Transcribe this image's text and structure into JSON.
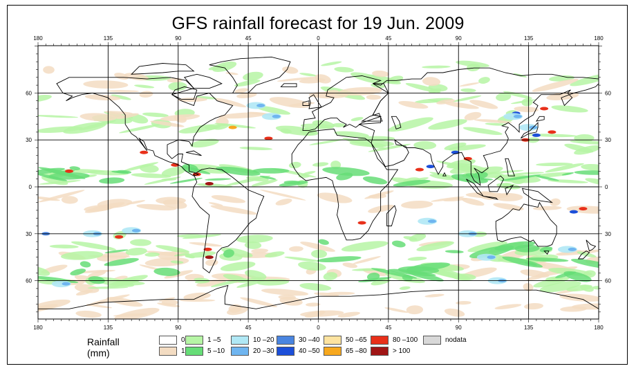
{
  "title": "GFS rainfall forecast for 19 Jun. 2009",
  "map": {
    "lon_ticks": [
      "180",
      "135",
      "90",
      "45",
      "0",
      "45",
      "90",
      "135",
      "180"
    ],
    "lat_ticks": [
      "60",
      "30",
      "0",
      "30",
      "60"
    ],
    "colors": {
      "ocean": "#ffffff",
      "land_line": "#000000",
      "grid": "#000000"
    }
  },
  "legend": {
    "title": "Rainfall (mm)",
    "items": [
      {
        "label": "0",
        "color": "#ffffff"
      },
      {
        "label": "1",
        "color": "#f3dcc2"
      },
      {
        "label": "1 –5",
        "color": "#b6f5a5"
      },
      {
        "label": "5 –10",
        "color": "#66dd77"
      },
      {
        "label": "10 –20",
        "color": "#b0e8f5"
      },
      {
        "label": "20 –30",
        "color": "#6fb5f0"
      },
      {
        "label": "30 –40",
        "color": "#4a85e0"
      },
      {
        "label": "40 –50",
        "color": "#1c4fd9"
      },
      {
        "label": "50 –65",
        "color": "#fde3a0"
      },
      {
        "label": "65 –80",
        "color": "#f7a81e"
      },
      {
        "label": "80 –100",
        "color": "#e8301a"
      },
      {
        "label": "> 100",
        "color": "#a01515"
      },
      {
        "label": "nodata",
        "color": "#d8d8d8"
      }
    ]
  }
}
